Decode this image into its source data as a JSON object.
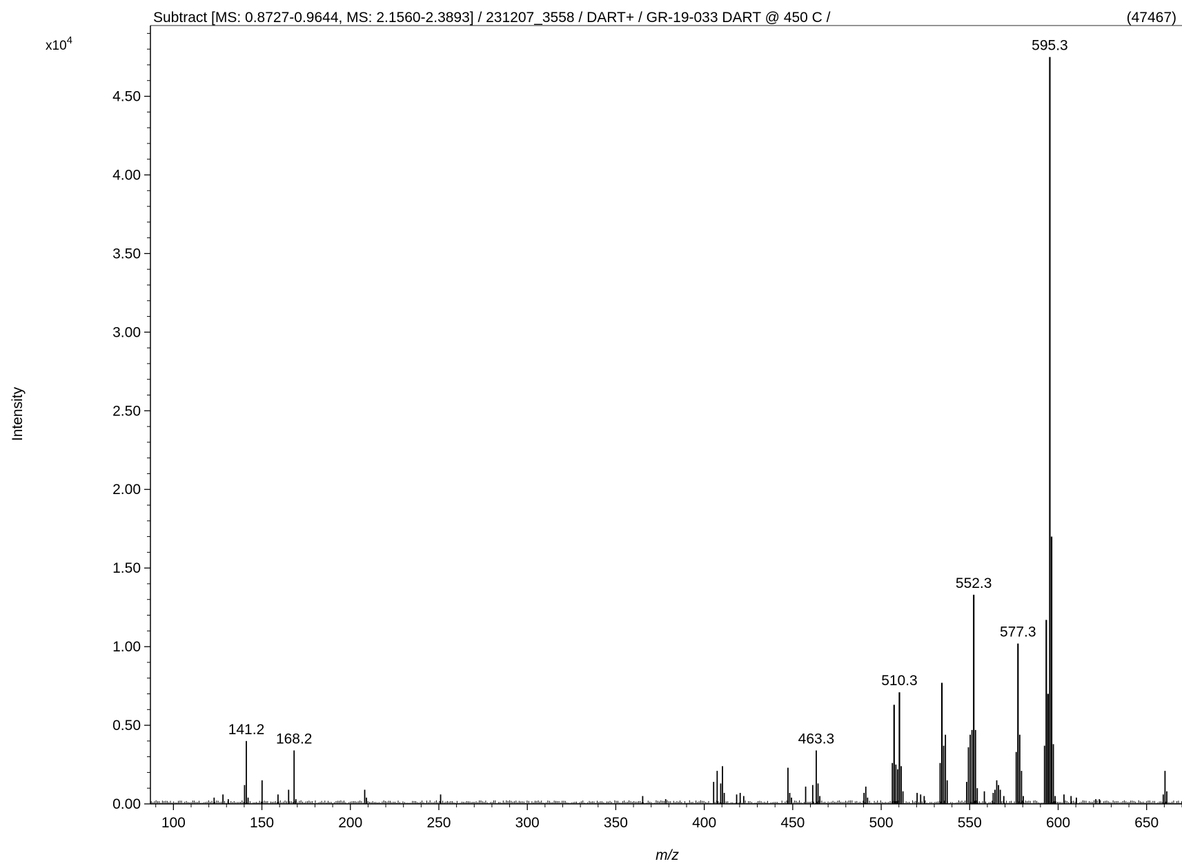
{
  "chart_data": {
    "type": "bar",
    "title": "Subtract [MS: 0.8727-0.9644, MS: 2.1560-2.3893] / 231207_3558 / DART+ / GR-19-033  DART @ 450 C /",
    "max_intensity_label": "(47467)",
    "xlabel": "m/z",
    "ylabel": "Intensity",
    "y_multiplier_base": "x10",
    "y_multiplier_exp": "4",
    "xlim": [
      87,
      670
    ],
    "ylim": [
      0,
      4.95
    ],
    "x_ticks": [
      "100",
      "150",
      "200",
      "250",
      "300",
      "350",
      "400",
      "450",
      "500",
      "550",
      "600",
      "650"
    ],
    "y_ticks": [
      "0.00",
      "0.50",
      "1.00",
      "1.50",
      "2.00",
      "2.50",
      "3.00",
      "3.50",
      "4.00",
      "4.50"
    ],
    "labeled_peaks": [
      {
        "mz": 141.2,
        "label": "141.2",
        "intensity": 0.4
      },
      {
        "mz": 168.2,
        "label": "168.2",
        "intensity": 0.34
      },
      {
        "mz": 463.3,
        "label": "463.3",
        "intensity": 0.34
      },
      {
        "mz": 510.3,
        "label": "510.3",
        "intensity": 0.71
      },
      {
        "mz": 552.3,
        "label": "552.3",
        "intensity": 1.33
      },
      {
        "mz": 577.3,
        "label": "577.3",
        "intensity": 1.02
      },
      {
        "mz": 595.3,
        "label": "595.3",
        "intensity": 4.75
      }
    ],
    "series": [
      {
        "mz": [
          123,
          128,
          131,
          140.2,
          141.2,
          142.2,
          150.1,
          159.1,
          165.1,
          168.2,
          169.2,
          208.1,
          209.1,
          251.0,
          365.2,
          378.2,
          405.3,
          407.3,
          409.3,
          410.3,
          411.3,
          418.3,
          420.3,
          422.3,
          447.3,
          448.3,
          449.3,
          457.3,
          461.3,
          463.3,
          464.3,
          465.3,
          490.3,
          491.3,
          492.3,
          506.3,
          507.3,
          508.3,
          509.3,
          510.3,
          511.3,
          512.3,
          520.3,
          522.3,
          524.3,
          533.3,
          534.3,
          535.3,
          536.3,
          537.3,
          548.3,
          549.3,
          550.3,
          551.3,
          552.3,
          553.3,
          554.3,
          558.3,
          563.3,
          564.3,
          565.3,
          566.3,
          567.3,
          569.3,
          576.3,
          577.3,
          578.3,
          579.3,
          580.3,
          592.3,
          593.3,
          594.3,
          595.3,
          596.3,
          597.3,
          598.3,
          603.3,
          607.3,
          610.3,
          621.3,
          623.3,
          659.4,
          660.4,
          661.4
        ],
        "intensity": [
          0.04,
          0.06,
          0.03,
          0.12,
          0.4,
          0.04,
          0.15,
          0.06,
          0.09,
          0.34,
          0.03,
          0.09,
          0.04,
          0.06,
          0.05,
          0.03,
          0.14,
          0.21,
          0.13,
          0.24,
          0.07,
          0.06,
          0.07,
          0.05,
          0.23,
          0.07,
          0.04,
          0.11,
          0.12,
          0.34,
          0.13,
          0.05,
          0.07,
          0.11,
          0.04,
          0.26,
          0.63,
          0.25,
          0.22,
          0.71,
          0.24,
          0.08,
          0.07,
          0.06,
          0.05,
          0.26,
          0.77,
          0.37,
          0.44,
          0.15,
          0.14,
          0.36,
          0.44,
          0.47,
          1.33,
          0.47,
          0.1,
          0.08,
          0.07,
          0.09,
          0.15,
          0.12,
          0.09,
          0.05,
          0.33,
          1.02,
          0.44,
          0.21,
          0.05,
          0.37,
          1.17,
          0.7,
          4.75,
          1.7,
          0.38,
          0.05,
          0.06,
          0.05,
          0.04,
          0.03,
          0.03,
          0.06,
          0.21,
          0.08
        ]
      }
    ]
  }
}
